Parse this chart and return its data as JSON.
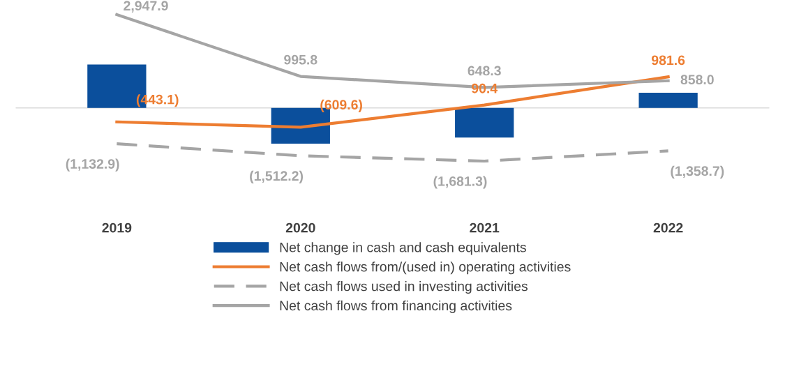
{
  "chart_data": {
    "type": "bar",
    "categories": [
      "2019",
      "2020",
      "2021",
      "2022"
    ],
    "series": [
      {
        "name": "Net change in cash and cash equivalents",
        "color": "#0b4f9c",
        "values": [
          1370,
          -1130,
          -940,
          480
        ],
        "value_labels": [
          null,
          null,
          null,
          null
        ]
      },
      {
        "name": "Net cash flows from/(used in) operating activities",
        "type": "line",
        "color": "#ed7d31",
        "line_style": "solid",
        "values": [
          -443.1,
          -609.6,
          90.4,
          981.6
        ],
        "value_labels": [
          "(443.1)",
          "(609.6)",
          "90.4",
          "981.6"
        ]
      },
      {
        "name": "Net cash flows used in investing activities",
        "type": "line",
        "color": "#a5a5a5",
        "line_style": "dashed",
        "values": [
          -1132.9,
          -1512.2,
          -1681.3,
          -1358.7
        ],
        "value_labels": [
          "(1,132.9)",
          "(1,512.2)",
          "(1,681.3)",
          "(1,358.7)"
        ]
      },
      {
        "name": "Net cash flows from financing activities",
        "type": "line",
        "color": "#a5a5a5",
        "line_style": "solid",
        "values": [
          2947.9,
          995.8,
          648.3,
          858.0
        ],
        "value_labels": [
          "2,947.9",
          "995.8",
          "648.3",
          "858.0"
        ]
      }
    ],
    "legend": "bottom",
    "grid": false,
    "marker": "none"
  }
}
